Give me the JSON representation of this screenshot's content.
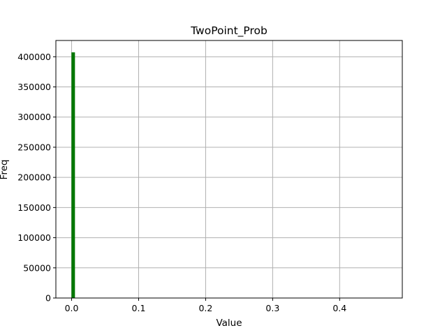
{
  "chart_data": {
    "type": "bar",
    "title": "TwoPoint_Prob",
    "xlabel": "Value",
    "ylabel": "Freq",
    "xlim": [
      -0.0235,
      0.4935
    ],
    "ylim": [
      0,
      427000
    ],
    "xticks": [
      0.0,
      0.1,
      0.2,
      0.3,
      0.4
    ],
    "xtick_labels": [
      "0.0",
      "0.1",
      "0.2",
      "0.3",
      "0.4"
    ],
    "yticks": [
      0,
      50000,
      100000,
      150000,
      200000,
      250000,
      300000,
      350000,
      400000
    ],
    "ytick_labels": [
      "0",
      "50000",
      "100000",
      "150000",
      "200000",
      "250000",
      "300000",
      "350000",
      "400000"
    ],
    "grid": true,
    "bar_color": "#007700",
    "bins": [
      {
        "x0": 0.0,
        "x1": 0.0047,
        "value": 407000
      }
    ]
  }
}
